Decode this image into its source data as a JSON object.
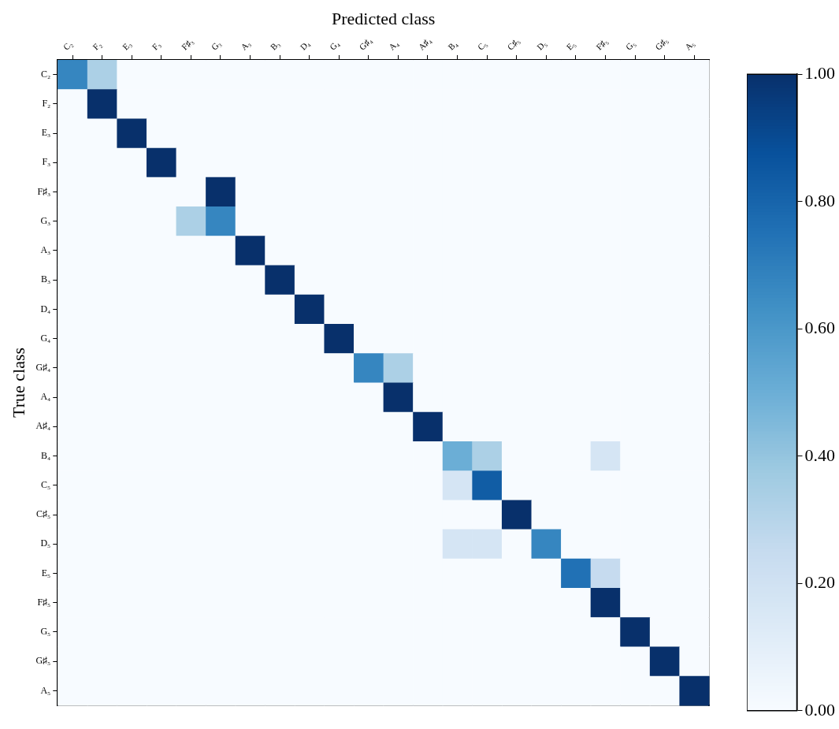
{
  "chart_data": {
    "type": "heatmap",
    "xlabel": "Predicted class",
    "ylabel": "True class",
    "categories": [
      "C₂",
      "F₂",
      "E₃",
      "F₃",
      "F♯₃",
      "G₃",
      "A₃",
      "B₃",
      "D₄",
      "G₄",
      "G♯₄",
      "A₄",
      "A♯₄",
      "B₄",
      "C₅",
      "C♯₅",
      "D₅",
      "E₅",
      "F♯₅",
      "G₅",
      "G♯₅",
      "A₅"
    ],
    "y_categories": [
      "C₂",
      "F₂",
      "E₃",
      "F₃",
      "F♯₃",
      "G₃",
      "A₃",
      "B₃",
      "D₄",
      "G₄",
      "G♯₄",
      "A₄",
      "A♯₄",
      "B₄",
      "C₅",
      "C♯₅",
      "D₅",
      "E₅",
      "F♯₅",
      "G₅",
      "G♯₅",
      "A₅"
    ],
    "cells": [
      [
        0.67,
        0.33,
        0,
        0,
        0,
        0,
        0,
        0,
        0,
        0,
        0,
        0,
        0,
        0,
        0,
        0,
        0,
        0,
        0,
        0,
        0,
        0
      ],
      [
        0,
        1,
        0,
        0,
        0,
        0,
        0,
        0,
        0,
        0,
        0,
        0,
        0,
        0,
        0,
        0,
        0,
        0,
        0,
        0,
        0,
        0
      ],
      [
        0,
        0,
        1,
        0,
        0,
        0,
        0,
        0,
        0,
        0,
        0,
        0,
        0,
        0,
        0,
        0,
        0,
        0,
        0,
        0,
        0,
        0
      ],
      [
        0,
        0,
        0,
        1,
        0,
        0,
        0,
        0,
        0,
        0,
        0,
        0,
        0,
        0,
        0,
        0,
        0,
        0,
        0,
        0,
        0,
        0
      ],
      [
        0,
        0,
        0,
        0,
        0,
        1,
        0,
        0,
        0,
        0,
        0,
        0,
        0,
        0,
        0,
        0,
        0,
        0,
        0,
        0,
        0,
        0
      ],
      [
        0,
        0,
        0,
        0,
        0.33,
        0.67,
        0,
        0,
        0,
        0,
        0,
        0,
        0,
        0,
        0,
        0,
        0,
        0,
        0,
        0,
        0,
        0
      ],
      [
        0,
        0,
        0,
        0,
        0,
        0,
        1,
        0,
        0,
        0,
        0,
        0,
        0,
        0,
        0,
        0,
        0,
        0,
        0,
        0,
        0,
        0
      ],
      [
        0,
        0,
        0,
        0,
        0,
        0,
        0,
        1,
        0,
        0,
        0,
        0,
        0,
        0,
        0,
        0,
        0,
        0,
        0,
        0,
        0,
        0
      ],
      [
        0,
        0,
        0,
        0,
        0,
        0,
        0,
        0,
        1,
        0,
        0,
        0,
        0,
        0,
        0,
        0,
        0,
        0,
        0,
        0,
        0,
        0
      ],
      [
        0,
        0,
        0,
        0,
        0,
        0,
        0,
        0,
        0,
        1,
        0,
        0,
        0,
        0,
        0,
        0,
        0,
        0,
        0,
        0,
        0,
        0
      ],
      [
        0,
        0,
        0,
        0,
        0,
        0,
        0,
        0,
        0,
        0,
        0.67,
        0.33,
        0,
        0,
        0,
        0,
        0,
        0,
        0,
        0,
        0,
        0
      ],
      [
        0,
        0,
        0,
        0,
        0,
        0,
        0,
        0,
        0,
        0,
        0,
        1,
        0,
        0,
        0,
        0,
        0,
        0,
        0,
        0,
        0,
        0
      ],
      [
        0,
        0,
        0,
        0,
        0,
        0,
        0,
        0,
        0,
        0,
        0,
        0,
        1,
        0,
        0,
        0,
        0,
        0,
        0,
        0,
        0,
        0
      ],
      [
        0,
        0,
        0,
        0,
        0,
        0,
        0,
        0,
        0,
        0,
        0,
        0,
        0,
        0.5,
        0.33,
        0,
        0,
        0,
        0.17,
        0,
        0,
        0
      ],
      [
        0,
        0,
        0,
        0,
        0,
        0,
        0,
        0,
        0,
        0,
        0,
        0,
        0,
        0.17,
        0.83,
        0,
        0,
        0,
        0,
        0,
        0,
        0
      ],
      [
        0,
        0,
        0,
        0,
        0,
        0,
        0,
        0,
        0,
        0,
        0,
        0,
        0,
        0,
        0,
        1,
        0,
        0,
        0,
        0,
        0,
        0
      ],
      [
        0,
        0,
        0,
        0,
        0,
        0,
        0,
        0,
        0,
        0,
        0,
        0,
        0,
        0.17,
        0.17,
        0,
        0.67,
        0,
        0,
        0,
        0,
        0
      ],
      [
        0,
        0,
        0,
        0,
        0,
        0,
        0,
        0,
        0,
        0,
        0,
        0,
        0,
        0,
        0,
        0,
        0,
        0.75,
        0.25,
        0,
        0,
        0
      ],
      [
        0,
        0,
        0,
        0,
        0,
        0,
        0,
        0,
        0,
        0,
        0,
        0,
        0,
        0,
        0,
        0,
        0,
        0,
        1,
        0,
        0,
        0
      ],
      [
        0,
        0,
        0,
        0,
        0,
        0,
        0,
        0,
        0,
        0,
        0,
        0,
        0,
        0,
        0,
        0,
        0,
        0,
        0,
        1,
        0,
        0
      ],
      [
        0,
        0,
        0,
        0,
        0,
        0,
        0,
        0,
        0,
        0,
        0,
        0,
        0,
        0,
        0,
        0,
        0,
        0,
        0,
        0,
        1,
        0
      ],
      [
        0,
        0,
        0,
        0,
        0,
        0,
        0,
        0,
        0,
        0,
        0,
        0,
        0,
        0,
        0,
        0,
        0,
        0,
        0,
        0,
        0,
        1
      ]
    ],
    "clim": [
      0,
      1
    ],
    "cticks": [
      {
        "value": 0,
        "label": "0.00"
      },
      {
        "value": 0.2,
        "label": "0.20"
      },
      {
        "value": 0.4,
        "label": "0.40"
      },
      {
        "value": 0.6,
        "label": "0.60"
      },
      {
        "value": 0.8,
        "label": "0.80"
      },
      {
        "value": 1,
        "label": "1.00"
      }
    ]
  }
}
